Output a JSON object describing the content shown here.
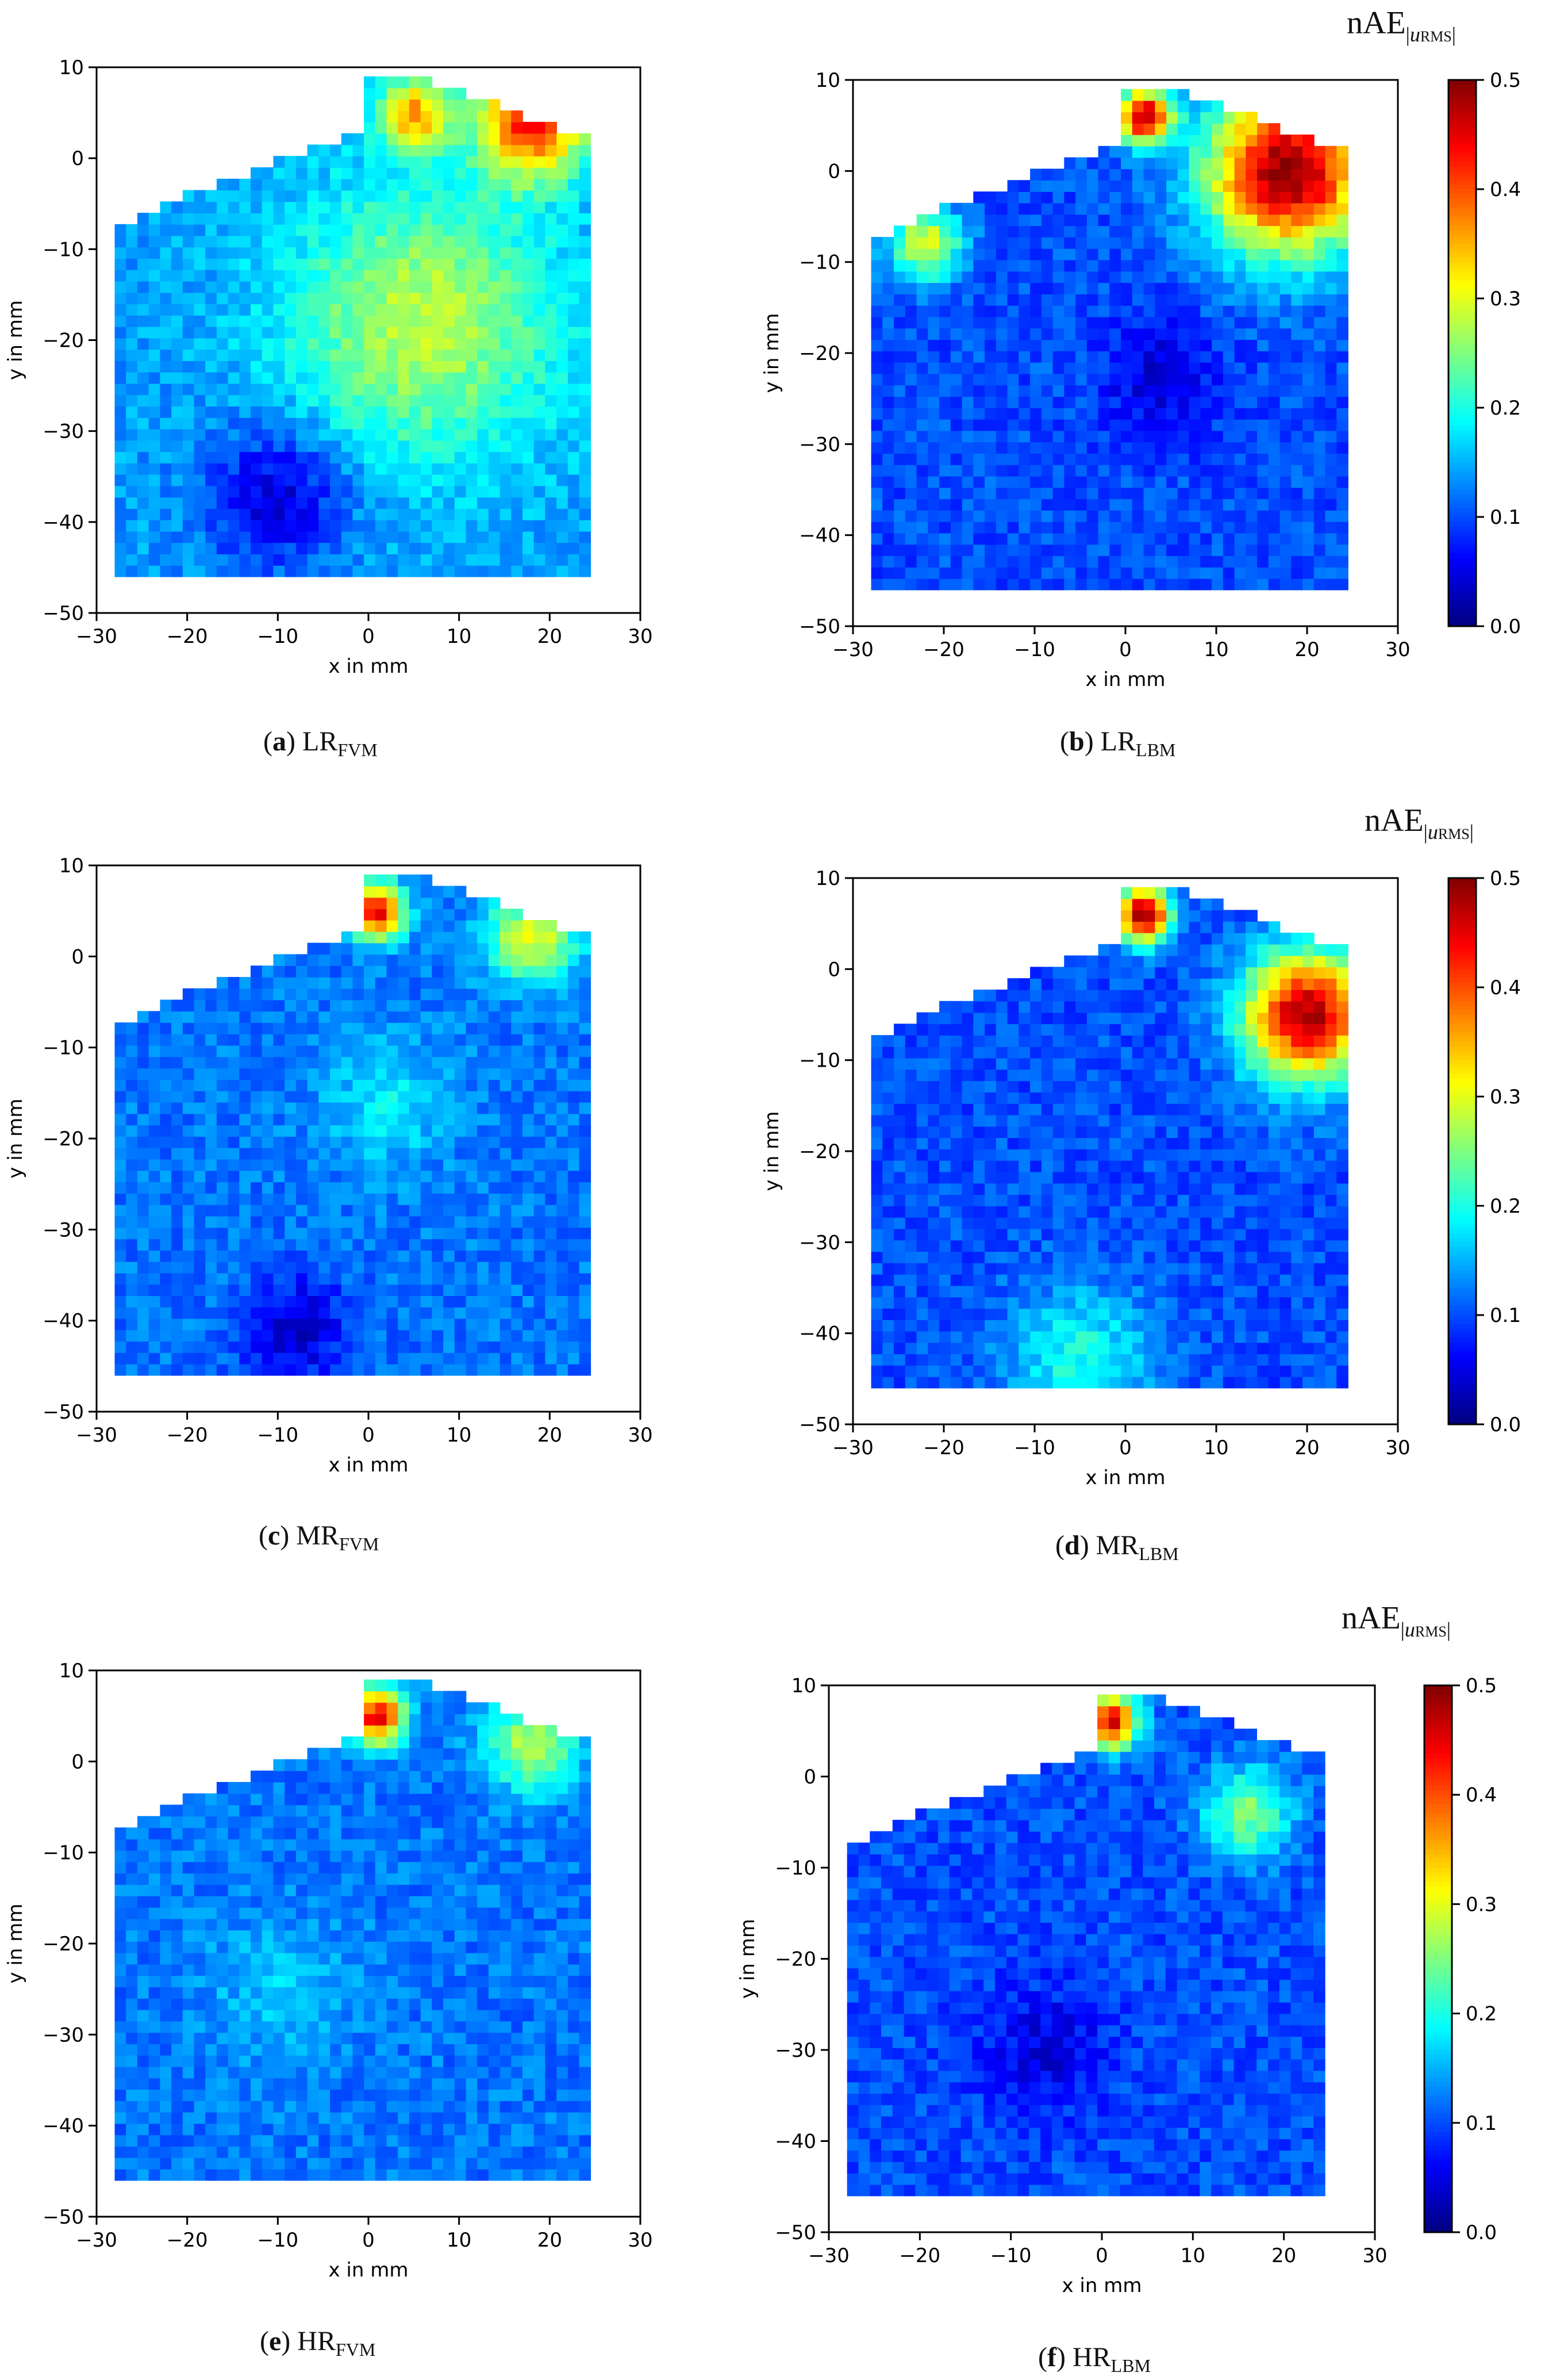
{
  "colorbar": {
    "title_main": "nAE",
    "title_sub_var": "u",
    "title_sub_sc": "RMS",
    "ticks": [
      "0.0",
      "0.1",
      "0.2",
      "0.3",
      "0.4",
      "0.5"
    ],
    "range": [
      0.0,
      0.5
    ],
    "colormap": "jet"
  },
  "chart_data": [
    {
      "type": "heatmap",
      "panel": "a",
      "label": "LR",
      "sub": "FVM",
      "xlabel": "x in mm",
      "ylabel": "y in mm",
      "xlim": [
        -30,
        30
      ],
      "ylim": [
        -50,
        10
      ],
      "xticks": [
        "−30",
        "−20",
        "−10",
        "0",
        "10",
        "20",
        "30"
      ],
      "yticks": [
        "10",
        "0",
        "−10",
        "−20",
        "−30",
        "−40",
        "−50"
      ],
      "field_level": 0.14,
      "blobs": [
        {
          "x": 6,
          "y": -18,
          "r": 15,
          "v": 0.28
        },
        {
          "x": 18,
          "y": 4,
          "r": 6,
          "v": 0.42
        },
        {
          "x": 5,
          "y": 5,
          "r": 4,
          "v": 0.35
        },
        {
          "x": -10,
          "y": -37,
          "r": 8,
          "v": 0.04
        }
      ]
    },
    {
      "type": "heatmap",
      "panel": "b",
      "label": "LR",
      "sub": "LBM",
      "xlabel": "x in mm",
      "ylabel": "y in mm",
      "xlim": [
        -30,
        30
      ],
      "ylim": [
        -50,
        10
      ],
      "xticks": [
        "−30",
        "−20",
        "−10",
        "0",
        "10",
        "20",
        "30"
      ],
      "yticks": [
        "10",
        "0",
        "−10",
        "−20",
        "−30",
        "−40",
        "−50"
      ],
      "field_level": 0.1,
      "blobs": [
        {
          "x": 18,
          "y": 0,
          "r": 9,
          "v": 0.5
        },
        {
          "x": 2,
          "y": 6,
          "r": 3,
          "v": 0.48
        },
        {
          "x": 4,
          "y": -23,
          "r": 6,
          "v": 0.04
        },
        {
          "x": -22,
          "y": -8,
          "r": 4,
          "v": 0.3
        }
      ]
    },
    {
      "type": "heatmap",
      "panel": "c",
      "label": "MR",
      "sub": "FVM",
      "xlabel": "x in mm",
      "ylabel": "y in mm",
      "xlim": [
        -30,
        30
      ],
      "ylim": [
        -50,
        10
      ],
      "xticks": [
        "−30",
        "−20",
        "−10",
        "0",
        "10",
        "20",
        "30"
      ],
      "yticks": [
        "10",
        "0",
        "−10",
        "−20",
        "−30",
        "−40",
        "−50"
      ],
      "field_level": 0.12,
      "blobs": [
        {
          "x": 2,
          "y": -16,
          "r": 7,
          "v": 0.18
        },
        {
          "x": 18,
          "y": 2,
          "r": 5,
          "v": 0.3
        },
        {
          "x": 1,
          "y": 5,
          "r": 3,
          "v": 0.45
        },
        {
          "x": -8,
          "y": -41,
          "r": 6,
          "v": 0.04
        }
      ]
    },
    {
      "type": "heatmap",
      "panel": "d",
      "label": "MR",
      "sub": "LBM",
      "xlabel": "x in mm",
      "ylabel": "y in mm",
      "xlim": [
        -30,
        30
      ],
      "ylim": [
        -50,
        10
      ],
      "xticks": [
        "−30",
        "−20",
        "−10",
        "0",
        "10",
        "20",
        "30"
      ],
      "yticks": [
        "10",
        "0",
        "−10",
        "−20",
        "−30",
        "−40",
        "−50"
      ],
      "field_level": 0.1,
      "blobs": [
        {
          "x": 20,
          "y": -5,
          "r": 7,
          "v": 0.48
        },
        {
          "x": 2,
          "y": 6,
          "r": 3,
          "v": 0.5
        },
        {
          "x": -5,
          "y": -43,
          "r": 8,
          "v": 0.2
        }
      ]
    },
    {
      "type": "heatmap",
      "panel": "e",
      "label": "HR",
      "sub": "FVM",
      "xlabel": "x in mm",
      "ylabel": "y in mm",
      "xlim": [
        -30,
        30
      ],
      "ylim": [
        -50,
        10
      ],
      "xticks": [
        "−30",
        "−20",
        "−10",
        "0",
        "10",
        "20",
        "30"
      ],
      "yticks": [
        "10",
        "0",
        "−10",
        "−20",
        "−30",
        "−40",
        "−50"
      ],
      "field_level": 0.12,
      "blobs": [
        {
          "x": 18,
          "y": 2,
          "r": 5,
          "v": 0.28
        },
        {
          "x": 1,
          "y": 5,
          "r": 3,
          "v": 0.45
        },
        {
          "x": -10,
          "y": -25,
          "r": 8,
          "v": 0.16
        }
      ]
    },
    {
      "type": "heatmap",
      "panel": "f",
      "label": "HR",
      "sub": "LBM",
      "xlabel": "x in mm",
      "ylabel": "y in mm",
      "xlim": [
        -30,
        30
      ],
      "ylim": [
        -50,
        10
      ],
      "xticks": [
        "−30",
        "−20",
        "−10",
        "0",
        "10",
        "20",
        "30"
      ],
      "yticks": [
        "10",
        "0",
        "−10",
        "−20",
        "−30",
        "−40",
        "−50"
      ],
      "field_level": 0.1,
      "blobs": [
        {
          "x": 16,
          "y": -4,
          "r": 5,
          "v": 0.25
        },
        {
          "x": 1,
          "y": 6,
          "r": 3,
          "v": 0.45
        },
        {
          "x": -6,
          "y": -30,
          "r": 7,
          "v": 0.05
        }
      ]
    }
  ]
}
